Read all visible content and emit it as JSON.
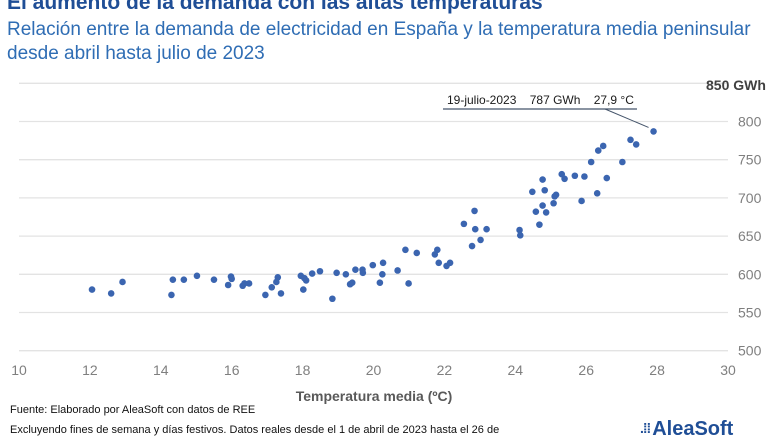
{
  "header": {
    "title": "El aumento de la demanda con las altas temperaturas",
    "subtitle": "Relación entre la demanda de electricidad en España y la temperatura media peninsular desde abril hasta julio de 2023"
  },
  "footer": {
    "source": "Fuente: Elaborado por AleaSoft con datos de REE",
    "note": "Excluyendo fines de semana y días festivos. Datos reales desde el 1 de abril de 2023 hasta el 26 de",
    "logo_text": "AleaSoft"
  },
  "colors": {
    "title": "#1f4e96",
    "subtitle": "#2f6db4",
    "points": "#3b65b0",
    "grid": "#e3e3e3"
  },
  "chart_data": {
    "type": "scatter",
    "title": "El aumento de la demanda con las altas temperaturas",
    "xlabel": "Temperatura media (ºC)",
    "ylabel": "",
    "y_unit_label": "850 GWh",
    "xlim": [
      10,
      30
    ],
    "ylim": [
      500,
      850
    ],
    "x_ticks": [
      "10",
      "12",
      "14",
      "16",
      "18",
      "20",
      "22",
      "24",
      "26",
      "28",
      "30"
    ],
    "y_ticks": [
      "500",
      "550",
      "600",
      "650",
      "700",
      "750",
      "800"
    ],
    "y_axis_side": "right",
    "grid": "horizontal",
    "annotation": {
      "text": "19-julio-2023    787 GWh    27,9 °C",
      "x": 27.9,
      "y": 787
    },
    "points": [
      [
        12.06,
        580
      ],
      [
        12.6,
        575
      ],
      [
        12.92,
        590
      ],
      [
        14.34,
        593
      ],
      [
        14.3,
        573
      ],
      [
        14.65,
        593
      ],
      [
        15.02,
        598
      ],
      [
        15.5,
        593
      ],
      [
        15.9,
        586
      ],
      [
        15.98,
        597
      ],
      [
        16.0,
        594
      ],
      [
        16.31,
        585
      ],
      [
        16.36,
        588
      ],
      [
        16.49,
        588
      ],
      [
        16.95,
        573
      ],
      [
        17.13,
        583
      ],
      [
        17.26,
        590
      ],
      [
        17.3,
        596
      ],
      [
        17.39,
        575
      ],
      [
        17.95,
        598
      ],
      [
        18.05,
        595
      ],
      [
        18.1,
        592
      ],
      [
        18.02,
        580
      ],
      [
        18.27,
        601
      ],
      [
        18.49,
        604
      ],
      [
        18.84,
        568
      ],
      [
        18.96,
        602
      ],
      [
        19.22,
        600
      ],
      [
        19.34,
        587
      ],
      [
        19.4,
        589
      ],
      [
        19.49,
        606
      ],
      [
        19.69,
        606
      ],
      [
        19.7,
        602
      ],
      [
        19.98,
        612
      ],
      [
        20.27,
        615
      ],
      [
        20.25,
        600
      ],
      [
        20.18,
        589
      ],
      [
        20.68,
        605
      ],
      [
        20.99,
        588
      ],
      [
        20.9,
        632
      ],
      [
        21.22,
        628
      ],
      [
        21.73,
        626
      ],
      [
        21.8,
        632
      ],
      [
        21.84,
        615
      ],
      [
        22.06,
        611
      ],
      [
        22.16,
        615
      ],
      [
        22.55,
        666
      ],
      [
        22.85,
        683
      ],
      [
        22.87,
        659
      ],
      [
        23.19,
        659
      ],
      [
        22.78,
        637
      ],
      [
        23.02,
        645
      ],
      [
        24.12,
        658
      ],
      [
        24.14,
        651
      ],
      [
        24.48,
        708
      ],
      [
        24.58,
        682
      ],
      [
        24.68,
        665
      ],
      [
        24.77,
        724
      ],
      [
        24.83,
        710
      ],
      [
        24.77,
        690
      ],
      [
        24.87,
        681
      ],
      [
        25.08,
        693
      ],
      [
        25.11,
        702
      ],
      [
        25.15,
        704
      ],
      [
        25.31,
        731
      ],
      [
        25.39,
        725
      ],
      [
        25.68,
        729
      ],
      [
        25.95,
        728
      ],
      [
        25.87,
        696
      ],
      [
        26.14,
        747
      ],
      [
        26.31,
        706
      ],
      [
        26.34,
        762
      ],
      [
        26.48,
        768
      ],
      [
        26.58,
        726
      ],
      [
        27.02,
        747
      ],
      [
        27.25,
        776
      ],
      [
        27.41,
        770
      ],
      [
        27.9,
        787
      ]
    ]
  }
}
